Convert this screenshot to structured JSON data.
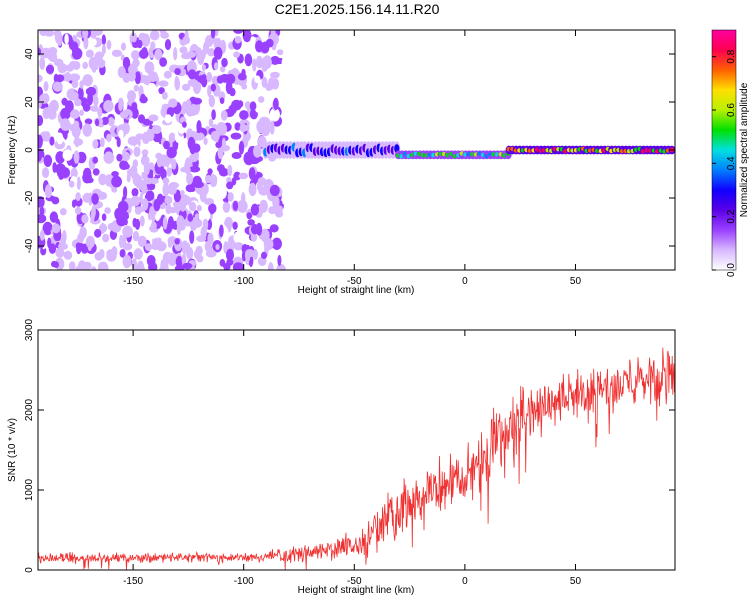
{
  "title": "C2E1.2025.156.14.11.R20",
  "colors": {
    "snr_line": "#f03030",
    "cmap": [
      "#ffffff",
      "#d8b8ff",
      "#9a40ff",
      "#5a00e8",
      "#1000ff",
      "#0080ff",
      "#00e0e0",
      "#00e000",
      "#b8f000",
      "#ffe000",
      "#ff6000",
      "#ff0050",
      "#ff00a0"
    ]
  },
  "chart_data": [
    {
      "type": "heatmap",
      "name": "spectrogram",
      "title": "C2E1.2025.156.14.11.R20",
      "xlabel": "Height of straight line (km)",
      "ylabel": "Frequency (Hz)",
      "xlim": [
        -193,
        95
      ],
      "ylim": [
        -50,
        50
      ],
      "xticks": [
        -150,
        -100,
        -50,
        0,
        50
      ],
      "yticks": [
        -40,
        -20,
        0,
        20,
        40
      ],
      "colorbar": {
        "label": "Normalized spectral amplitude",
        "range": [
          0,
          0.9
        ],
        "ticks": [
          0.0,
          0.2,
          0.4,
          0.6,
          0.8
        ]
      },
      "regions": [
        {
          "description": "scattered noise",
          "x": [
            -193,
            -83
          ],
          "y": [
            -50,
            50
          ],
          "amplitude": 0.15
        },
        {
          "description": "signal line",
          "x": [
            -90,
            -30
          ],
          "y_center": 0,
          "half_width": 4,
          "amplitude": 0.35
        },
        {
          "description": "signal line",
          "x": [
            -30,
            20
          ],
          "y_center": -2,
          "half_width": 2,
          "amplitude": 0.6
        },
        {
          "description": "signal line",
          "x": [
            20,
            95
          ],
          "y_center": 0,
          "half_width": 2,
          "amplitude": 0.85
        }
      ]
    },
    {
      "type": "line",
      "name": "snr",
      "xlabel": "Height of straight line (km)",
      "ylabel": "SNR (10 * v/v)",
      "xlim": [
        -193,
        95
      ],
      "ylim": [
        0,
        3000
      ],
      "xticks": [
        -150,
        -100,
        -50,
        0,
        50
      ],
      "yticks": [
        0,
        1000,
        2000,
        3000
      ],
      "envelope": {
        "x": [
          -193,
          -150,
          -100,
          -80,
          -60,
          -45,
          -35,
          -30,
          -20,
          -10,
          0,
          10,
          20,
          30,
          40,
          50,
          60,
          70,
          80,
          90,
          95
        ],
        "mean": [
          150,
          150,
          150,
          180,
          260,
          350,
          600,
          750,
          900,
          1050,
          1200,
          1500,
          1800,
          2000,
          2100,
          2150,
          2250,
          2300,
          2350,
          2400,
          2400
        ],
        "spread": [
          80,
          80,
          80,
          120,
          180,
          250,
          500,
          600,
          500,
          450,
          450,
          500,
          500,
          450,
          420,
          400,
          400,
          400,
          400,
          450,
          450
        ]
      }
    }
  ]
}
